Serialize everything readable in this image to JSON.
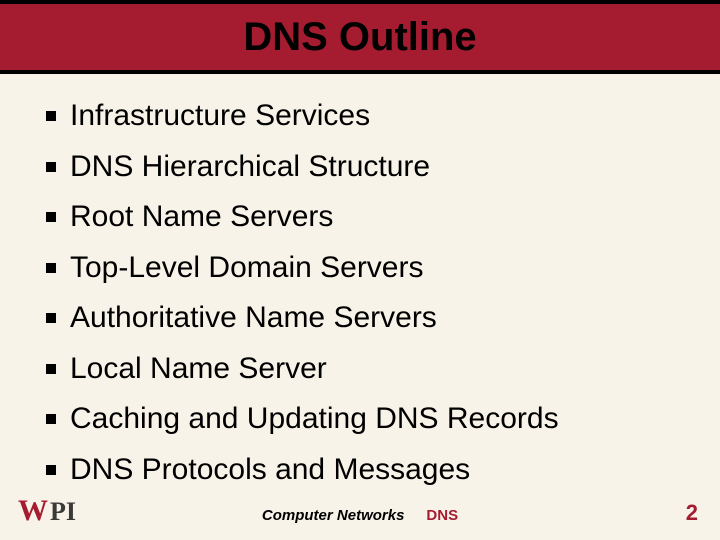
{
  "slide": {
    "title": "DNS Outline",
    "title_bar_bg": "#a51c30",
    "title_color": "#000000",
    "title_fontsize": 40,
    "background_color": "#f8f3e8",
    "bullets": [
      "Infrastructure Services",
      "DNS Hierarchical Structure",
      "Root Name Servers",
      "Top-Level Domain Servers",
      "Authoritative Name Servers",
      "Local Name Server",
      "Caching and Updating DNS Records",
      "DNS Protocols and Messages"
    ],
    "bullet_fontsize": 30,
    "bullet_marker": "square",
    "bullet_marker_color": "#000000"
  },
  "footer": {
    "logo_text_1": "W",
    "logo_text_2": "PI",
    "logo_color_1": "#a51c30",
    "logo_color_2": "#3a3a3a",
    "center_label_1": "Computer Networks",
    "center_label_2": "DNS",
    "center_label_2_color": "#a51c30",
    "page_number": "2",
    "page_number_color": "#a51c30"
  }
}
